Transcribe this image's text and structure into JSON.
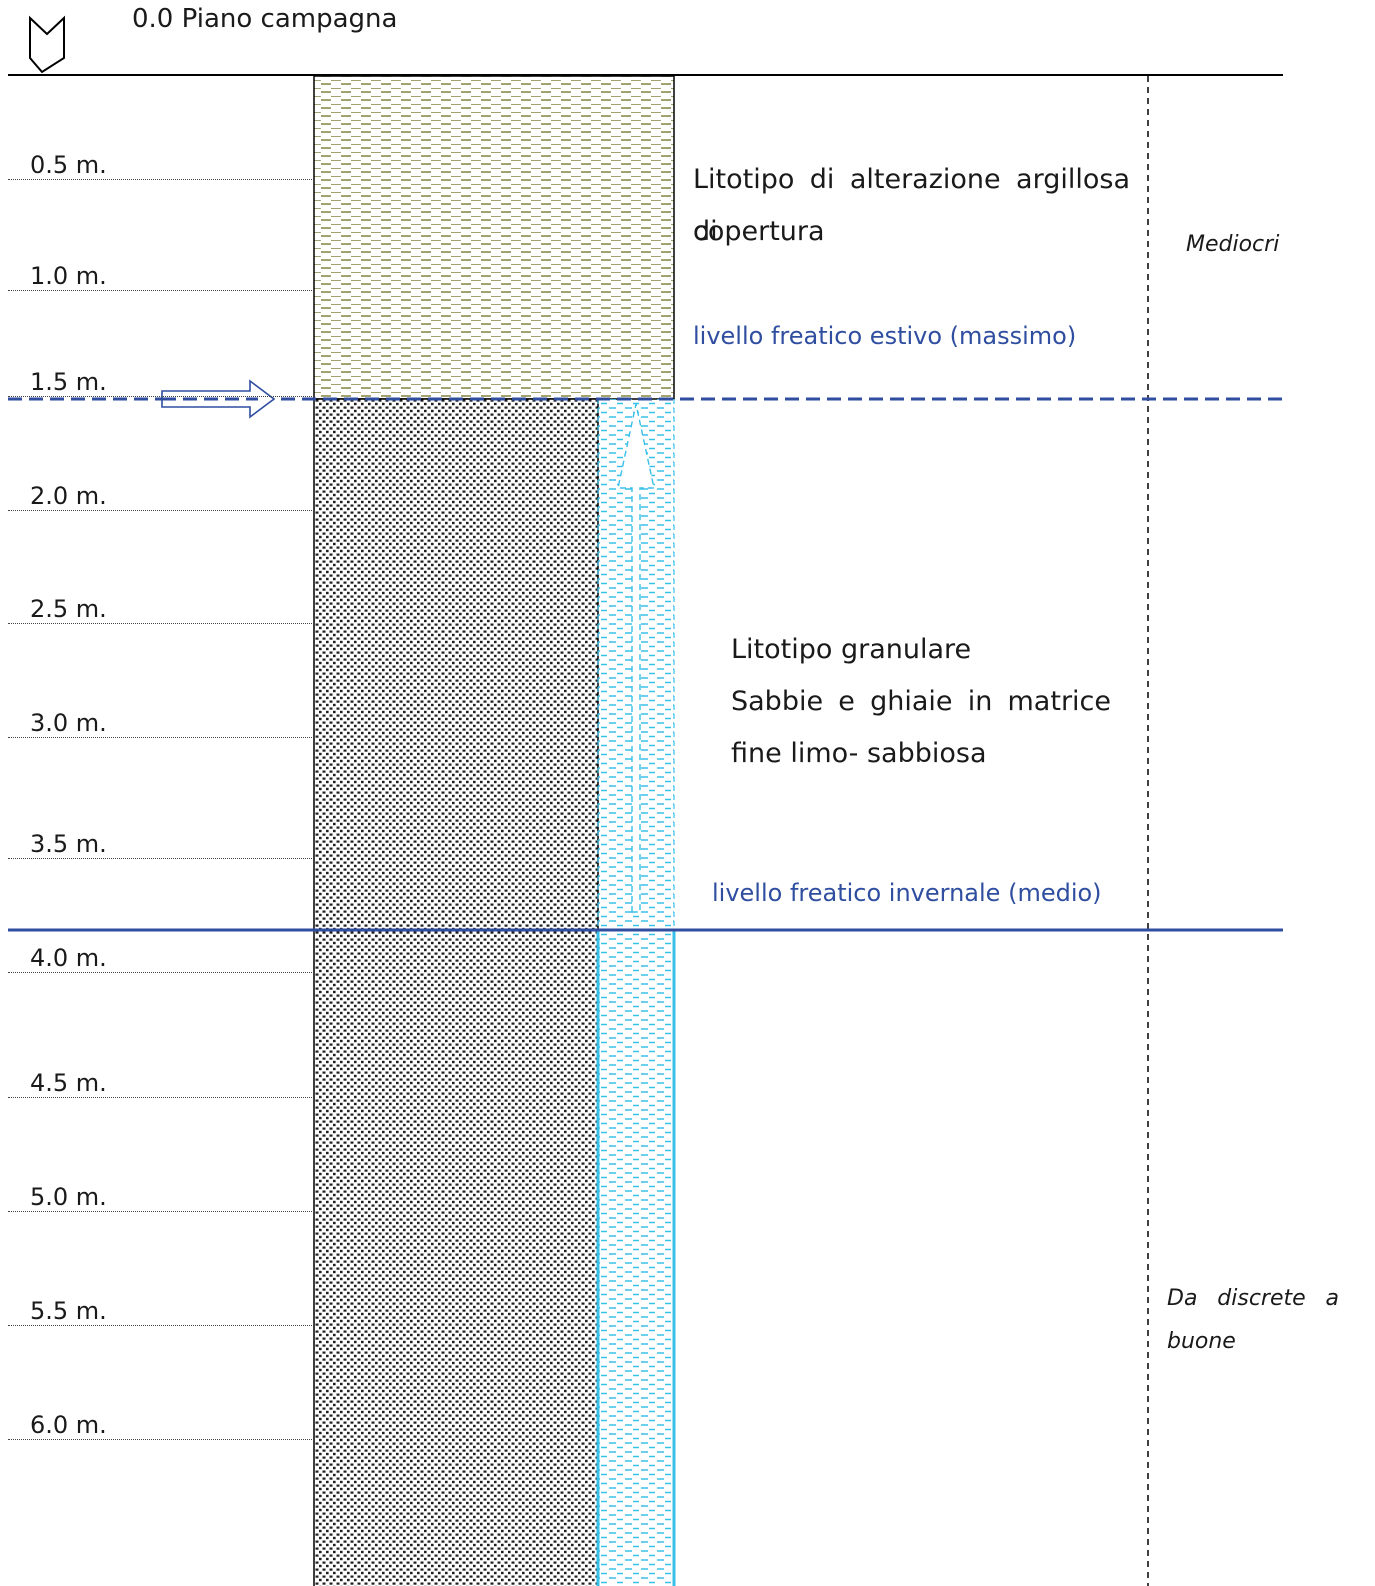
{
  "ground_surface": {
    "label": "0.0 Piano campagna"
  },
  "depth_scale": [
    "0.5 m.",
    "1.0 m.",
    "1.5 m.",
    "2.0 m.",
    "2.5 m.",
    "3.0 m.",
    "3.5 m.",
    "4.0 m.",
    "4.5 m.",
    "5.0 m.",
    "5.5 m.",
    "6.0 m."
  ],
  "layers": {
    "top": {
      "description": "Litotipo di alterazione argillosa di copertura",
      "line1": "Litotipo di alterazione argillosa di",
      "line2": "copertura",
      "color": "#8a8a4a"
    },
    "bottom": {
      "title": "Litotipo granulare",
      "line1": "Sabbie e ghiaie in matrice",
      "line2": "fine limo- sabbiosa",
      "color": "#222222"
    }
  },
  "water_levels": {
    "summer": {
      "label": "livello freatico estivo (massimo)",
      "depth_m": 1.5
    },
    "winter": {
      "label": "livello freatico invernale (medio)",
      "depth_m": 3.85
    },
    "color": "#2f4ea0",
    "water_color": "#38c0e8"
  },
  "quality": {
    "upper": "Mediocri",
    "lower_line1": "Da discrete a",
    "lower_line2": "buone"
  }
}
